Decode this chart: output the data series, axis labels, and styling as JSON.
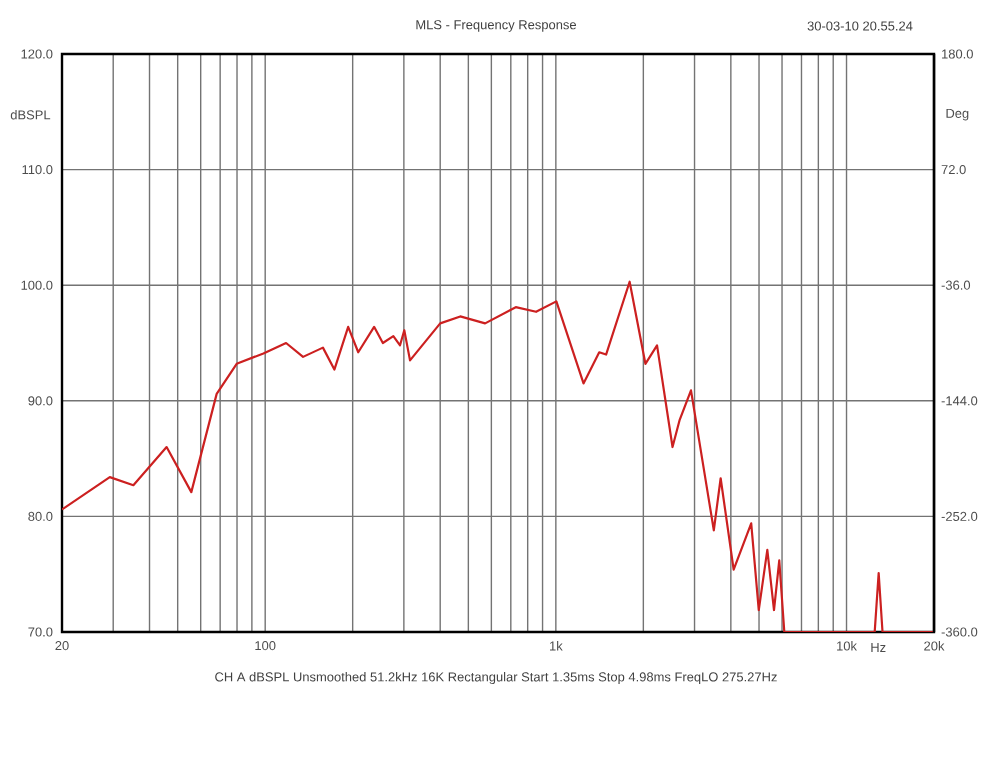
{
  "chart_data": {
    "type": "line",
    "title": "MLS - Frequency Response",
    "ylabel": "dBSPL",
    "y2label": "Deg",
    "xlabel": "Hz",
    "annotations": [
      "30-03-10 20.55.24",
      "CH A  dBSPL  Unsmoothed  51.2kHz  16K  Rectangular  Start 1.35ms  Stop 4.98ms  FreqLO 275.27Hz"
    ],
    "log": "x",
    "grid": true,
    "marker": "none",
    "line_style": "solid",
    "xlim": [
      20,
      20000
    ],
    "ylim": [
      70,
      120
    ],
    "y2lim": [
      -360,
      180
    ],
    "xticks": [
      20,
      {
        "value": 30,
        "label": null
      },
      {
        "value": 40,
        "label": null
      },
      {
        "value": 50,
        "label": null
      },
      {
        "value": 60,
        "label": null
      },
      {
        "value": 70,
        "label": null
      },
      {
        "value": 80,
        "label": null
      },
      {
        "value": 90,
        "label": null
      },
      100,
      {
        "value": 200,
        "label": null
      },
      {
        "value": 300,
        "label": null
      },
      {
        "value": 400,
        "label": null
      },
      {
        "value": 500,
        "label": null
      },
      {
        "value": 600,
        "label": null
      },
      {
        "value": 700,
        "label": null
      },
      {
        "value": 800,
        "label": null
      },
      {
        "value": 900,
        "label": null
      },
      {
        "value": 1000,
        "label": "1k"
      },
      {
        "value": 2000,
        "label": null
      },
      {
        "value": 3000,
        "label": null
      },
      {
        "value": 4000,
        "label": null
      },
      {
        "value": 5000,
        "label": null
      },
      {
        "value": 6000,
        "label": null
      },
      {
        "value": 7000,
        "label": null
      },
      {
        "value": 8000,
        "label": null
      },
      {
        "value": 9000,
        "label": null
      },
      {
        "value": 10000,
        "label": "10k"
      },
      {
        "value": 20000,
        "label": "20k"
      }
    ],
    "yticks": [
      {
        "value": 70,
        "label": "70.0"
      },
      {
        "value": 80,
        "label": "80.0"
      },
      {
        "value": 90,
        "label": "90.0"
      },
      {
        "value": 100,
        "label": "100.0"
      },
      {
        "value": 110,
        "label": "110.0"
      },
      {
        "value": 120,
        "label": "120.0"
      }
    ],
    "y2ticks": [
      {
        "value": -360,
        "label": "-360.0"
      },
      {
        "value": -252,
        "label": "-252.0"
      },
      {
        "value": -144,
        "label": "-144.0"
      },
      {
        "value": -36,
        "label": "-36.0"
      },
      {
        "value": 72,
        "label": "72.0"
      },
      {
        "value": 180,
        "label": "180.0"
      }
    ],
    "series": [
      {
        "color": "#cc2020",
        "x": [
          20,
          29.2,
          35.2,
          45.8,
          55.7,
          68.1,
          79.8,
          98.6,
          118,
          135,
          158,
          173,
          193,
          209,
          237,
          254,
          276,
          291,
          301,
          315,
          400,
          469,
          571,
          728,
          855,
          1004,
          1245,
          1410,
          1489,
          1794,
          2033,
          2229,
          2520,
          2663,
          2917,
          3495,
          3690,
          4090,
          4700,
          4990,
          5340,
          5630,
          5870,
          6110,
          12500,
          12900,
          13300,
          20000
        ],
        "values": [
          80.6,
          83.4,
          82.7,
          86.0,
          82.1,
          90.6,
          93.2,
          94.1,
          95.0,
          93.8,
          94.6,
          92.7,
          96.4,
          94.2,
          96.4,
          95.0,
          95.6,
          94.8,
          96.1,
          93.5,
          96.7,
          97.3,
          96.7,
          98.1,
          97.7,
          98.6,
          91.5,
          94.2,
          94.0,
          100.3,
          93.2,
          94.8,
          86.0,
          88.3,
          90.9,
          78.8,
          83.3,
          75.4,
          79.4,
          71.9,
          77.1,
          71.9,
          76.2,
          70,
          70,
          75.1,
          70,
          70
        ]
      }
    ]
  }
}
